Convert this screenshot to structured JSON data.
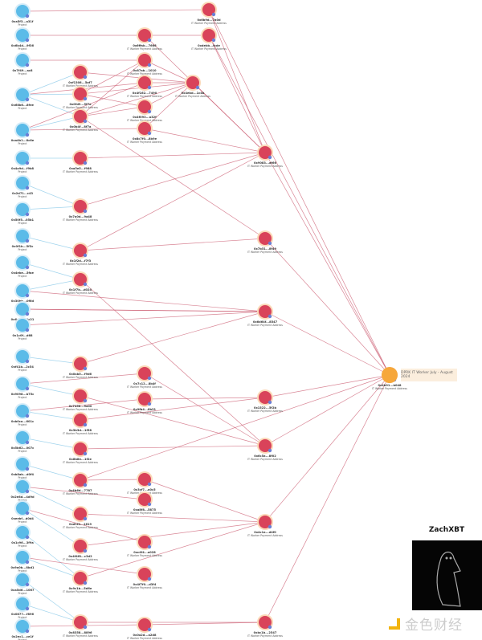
{
  "callout": "DPRK IT Worker July - August 2024",
  "brand": "ZachXBT",
  "watermark": "金色财经",
  "colors": {
    "project": "#5bbbe8",
    "payment": "#d9435a",
    "hub": "#f6a73b",
    "edge_red": "#c9546a",
    "edge_blue": "#7cc3e6"
  },
  "node_types": {
    "project": "Project",
    "payment": "IT Worker Payment Address"
  },
  "nodes": [
    {
      "label": "0xa5f3...a31f",
      "type": "project"
    },
    {
      "label": "0x6b4d...9f36",
      "type": "project"
    },
    {
      "label": "0x7f49...ac8",
      "type": "project"
    },
    {
      "label": "0x68b6...8fee",
      "type": "project"
    },
    {
      "label": "0xa4b1...8c6e",
      "type": "project"
    },
    {
      "label": "0x4a9d...f9b8",
      "type": "project"
    },
    {
      "label": "0x2d71...c43",
      "type": "project"
    },
    {
      "label": "0x50f5...05b1",
      "type": "project"
    },
    {
      "label": "0x0f1b...5f3c",
      "type": "project"
    },
    {
      "label": "0x4ebe...5fae",
      "type": "project"
    },
    {
      "label": "0x30bb...0f6d",
      "type": "project"
    },
    {
      "label": "0x6d3d...0c21",
      "type": "project"
    },
    {
      "label": "0x1c0f...d68",
      "type": "project"
    },
    {
      "label": "0xf41b...2c54",
      "type": "project"
    },
    {
      "label": "0x9098...b75c",
      "type": "project"
    },
    {
      "label": "0xb0ca...601c",
      "type": "project"
    },
    {
      "label": "0x5b62...007c",
      "type": "project"
    },
    {
      "label": "0xb8ab...d0f4",
      "type": "project"
    },
    {
      "label": "0x2e8d...4d9d",
      "type": "project"
    },
    {
      "label": "0xeebf...d0d4",
      "type": "project"
    },
    {
      "label": "0x1c96...3f9a",
      "type": "project"
    },
    {
      "label": "0x9a0b...8bd1",
      "type": "project"
    },
    {
      "label": "0xa5d6...1067",
      "type": "project"
    },
    {
      "label": "0x0877...f896",
      "type": "project"
    },
    {
      "label": "0x2ec1...ce1f",
      "type": "project"
    },
    {
      "label": "0xf1308...5af7",
      "type": "payment"
    },
    {
      "label": "0x0fd9...5f7a",
      "type": "payment"
    },
    {
      "label": "0x0b4f...8f7a",
      "type": "payment"
    },
    {
      "label": "0xa5e5...f988",
      "type": "payment"
    },
    {
      "label": "0x7a0d...9a48",
      "type": "payment"
    },
    {
      "label": "0x1f2d...f7f3",
      "type": "payment"
    },
    {
      "label": "0x1f7b...d024",
      "type": "payment"
    },
    {
      "label": "0x0ab5...f9d6",
      "type": "payment"
    },
    {
      "label": "0x7458...5a00",
      "type": "payment"
    },
    {
      "label": "0x3b3d...1f58",
      "type": "payment"
    },
    {
      "label": "0x8b84...1f2e",
      "type": "payment"
    },
    {
      "label": "0x4b6d...7787",
      "type": "payment"
    },
    {
      "label": "0xd1f4...1619",
      "type": "payment"
    },
    {
      "label": "0x4f4f8...c3d2",
      "type": "payment"
    },
    {
      "label": "0x9c1b...5d6e",
      "type": "payment"
    },
    {
      "label": "0x8358...8896",
      "type": "payment"
    },
    {
      "label": "0x6ffab...7666",
      "type": "payment"
    },
    {
      "label": "0x87ab...1010",
      "type": "payment"
    },
    {
      "label": "0x4f162...7490",
      "type": "payment"
    },
    {
      "label": "0x4f093...a32f",
      "type": "payment"
    },
    {
      "label": "0x8c7f0...8b9e",
      "type": "payment"
    },
    {
      "label": "0x7c12...8b4f",
      "type": "payment"
    },
    {
      "label": "0x9fb4...8b31",
      "type": "payment"
    },
    {
      "label": "0x3cf7...a0c5",
      "type": "payment"
    },
    {
      "label": "0xa8f8...5875",
      "type": "payment"
    },
    {
      "label": "0xc4f4...a028",
      "type": "payment"
    },
    {
      "label": "0x4f7f0...d3f4",
      "type": "payment"
    },
    {
      "label": "0x0a2d...a2d8",
      "type": "payment"
    },
    {
      "label": "0x4ebd...1c4b",
      "type": "payment"
    },
    {
      "label": "0x6b9d...7a0d",
      "type": "payment"
    },
    {
      "label": "0xdebb...fcde",
      "type": "payment"
    },
    {
      "label": "0x9083...af66",
      "type": "payment"
    },
    {
      "label": "0x7b51...8f49",
      "type": "payment"
    },
    {
      "label": "0x6d64f...8547",
      "type": "payment"
    },
    {
      "label": "0x1522...5f2b",
      "type": "payment"
    },
    {
      "label": "0x6c5a...8f02",
      "type": "payment"
    },
    {
      "label": "0x4c1a...d4f0",
      "type": "payment"
    },
    {
      "label": "0xbc1b...2547",
      "type": "payment"
    },
    {
      "label": "0x4b91...b048",
      "type": "payment"
    }
  ]
}
